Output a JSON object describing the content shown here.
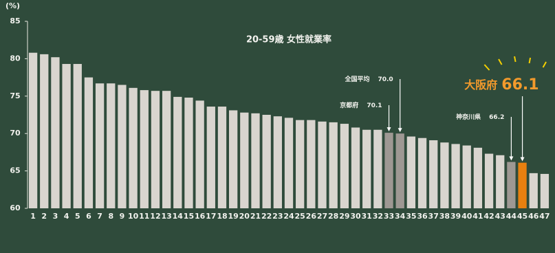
{
  "chart_data": {
    "type": "bar",
    "title": "20-59歳 女性就業率",
    "y_unit": "(%)",
    "categories": [
      "1",
      "2",
      "3",
      "4",
      "5",
      "6",
      "7",
      "8",
      "9",
      "10",
      "11",
      "12",
      "13",
      "14",
      "15",
      "16",
      "17",
      "18",
      "19",
      "20",
      "21",
      "22",
      "23",
      "24",
      "25",
      "26",
      "27",
      "28",
      "29",
      "30",
      "31",
      "32",
      "33",
      "34",
      "35",
      "36",
      "37",
      "38",
      "39",
      "40",
      "41",
      "42",
      "43",
      "44",
      "45",
      "46",
      "47"
    ],
    "values": [
      80.8,
      80.6,
      80.2,
      79.3,
      79.3,
      77.5,
      76.7,
      76.7,
      76.5,
      76.1,
      75.8,
      75.7,
      75.7,
      74.9,
      74.8,
      74.4,
      73.6,
      73.6,
      73.1,
      72.8,
      72.7,
      72.5,
      72.3,
      72.1,
      71.8,
      71.8,
      71.6,
      71.5,
      71.3,
      70.8,
      70.5,
      70.5,
      70.1,
      70.0,
      69.6,
      69.4,
      69.1,
      68.8,
      68.6,
      68.4,
      68.1,
      67.3,
      67.1,
      66.2,
      66.1,
      64.7,
      64.6
    ],
    "colors": [
      "#d9d5cf",
      "#d9d5cf",
      "#d9d5cf",
      "#d9d5cf",
      "#d9d5cf",
      "#d9d5cf",
      "#d9d5cf",
      "#d9d5cf",
      "#d9d5cf",
      "#d9d5cf",
      "#d9d5cf",
      "#d9d5cf",
      "#d9d5cf",
      "#d9d5cf",
      "#d9d5cf",
      "#d9d5cf",
      "#d9d5cf",
      "#d9d5cf",
      "#d9d5cf",
      "#d9d5cf",
      "#d9d5cf",
      "#d9d5cf",
      "#d9d5cf",
      "#d9d5cf",
      "#d9d5cf",
      "#d9d5cf",
      "#d9d5cf",
      "#d9d5cf",
      "#d9d5cf",
      "#d9d5cf",
      "#d9d5cf",
      "#d9d5cf",
      "#9e9893",
      "#9e9893",
      "#d9d5cf",
      "#d9d5cf",
      "#d9d5cf",
      "#d9d5cf",
      "#d9d5cf",
      "#d9d5cf",
      "#d9d5cf",
      "#d9d5cf",
      "#d9d5cf",
      "#9e9893",
      "#e8800f",
      "#d9d5cf",
      "#d9d5cf"
    ],
    "ylim": [
      60,
      85
    ],
    "yticks": [
      60,
      65,
      70,
      75,
      80,
      85
    ],
    "annotations": [
      {
        "text": "全国平均",
        "value_label": "70.0",
        "category": "34",
        "color": "#ffffff"
      },
      {
        "text": "京都府",
        "value_label": "70.1",
        "category": "33",
        "color": "#ffffff"
      },
      {
        "text": "神奈川県",
        "value_label": "66.2",
        "category": "44",
        "color": "#ffffff"
      },
      {
        "text": "大阪府",
        "value_label": "66.1",
        "category": "45",
        "color": "#f39a2c"
      }
    ]
  }
}
